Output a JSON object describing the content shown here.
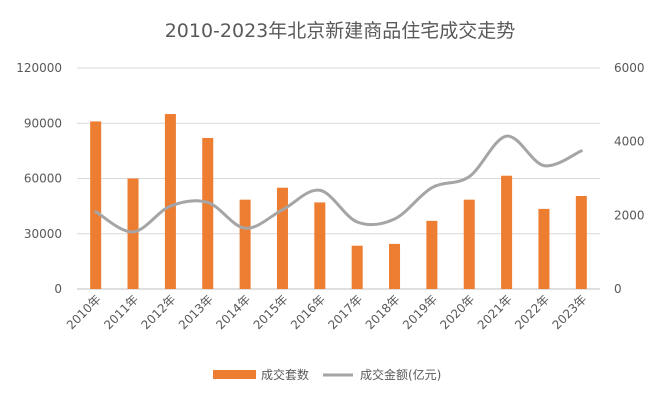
{
  "chart_data": {
    "type": "bar",
    "title": "2010-2023年北京新建商品住宅成交走势",
    "categories": [
      "2010年",
      "2011年",
      "2012年",
      "2013年",
      "2014年",
      "2015年",
      "2016年",
      "2017年",
      "2018年",
      "2019年",
      "2020年",
      "2021年",
      "2022年",
      "2023年"
    ],
    "series": [
      {
        "name": "成交套数",
        "type": "bar",
        "axis": "left",
        "color": "#ED7D31",
        "values": [
          91000,
          60000,
          95000,
          82000,
          48500,
          55000,
          47000,
          23500,
          24500,
          37000,
          48500,
          61500,
          43500,
          50500
        ]
      },
      {
        "name": "成交金额(亿元)",
        "type": "line",
        "smooth": true,
        "axis": "right",
        "color": "#A5A5A5",
        "values": [
          2100,
          1550,
          2250,
          2350,
          1650,
          2150,
          2680,
          1820,
          1900,
          2750,
          3050,
          4150,
          3350,
          3750
        ]
      }
    ],
    "y_left": {
      "ylim": [
        0,
        120000
      ],
      "ticks": [
        "0",
        "30000",
        "60000",
        "90000",
        "120000"
      ]
    },
    "y_right": {
      "ylim": [
        0,
        6000
      ],
      "ticks": [
        "0",
        "2000",
        "4000",
        "6000"
      ]
    },
    "grid": true,
    "legend_position": "bottom"
  }
}
